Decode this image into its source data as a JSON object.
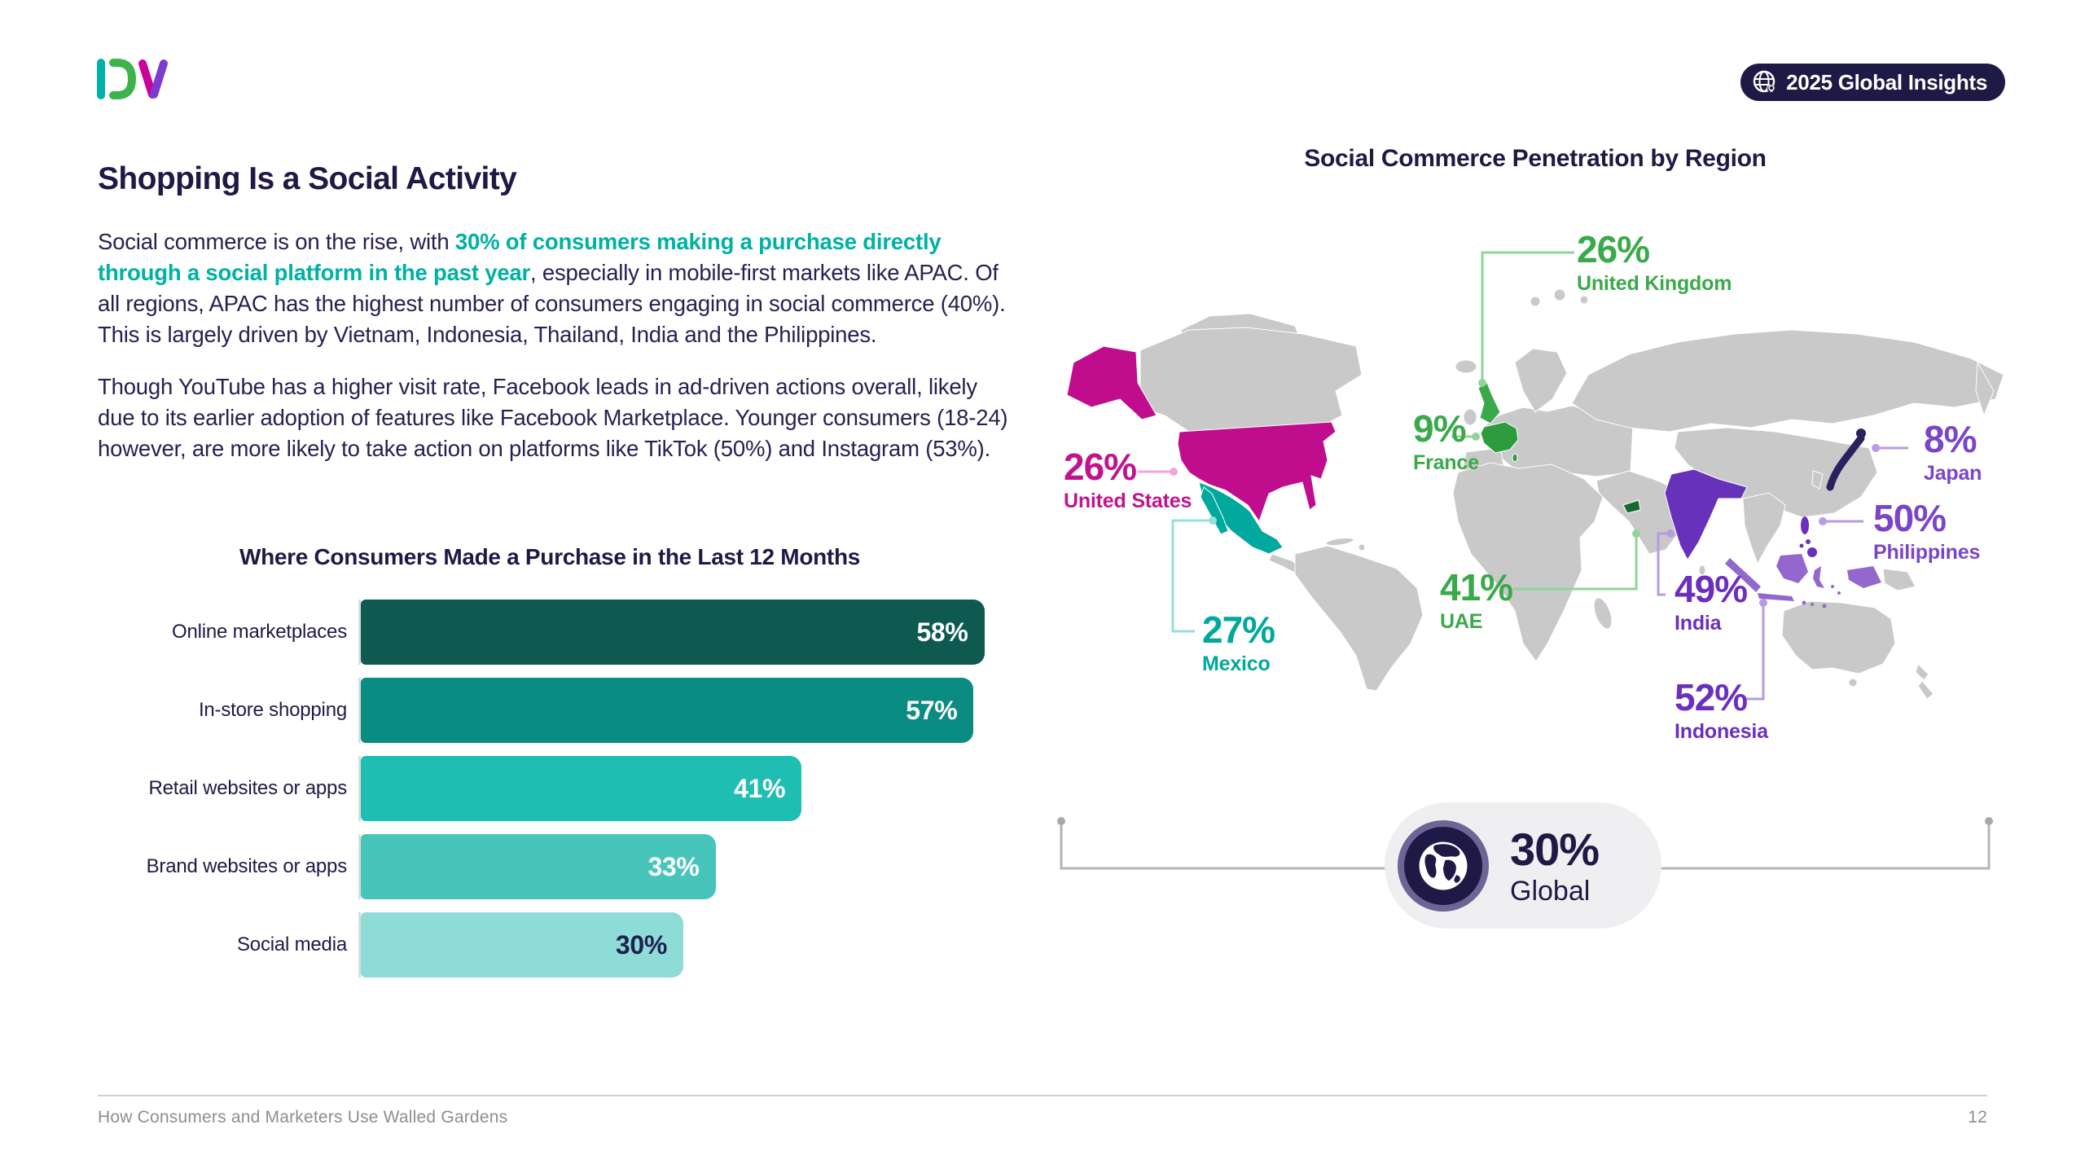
{
  "brand": {
    "logo_text": "DV"
  },
  "badge": {
    "icon": "globe-idea-icon",
    "label": "2025 Global Insights"
  },
  "left": {
    "heading": "Shopping Is a Social Activity",
    "para1_pre": "Social commerce is on the rise, with ",
    "para1_highlight": "30% of consumers making a purchase directly through a social platform in the past year",
    "para1_post": ", especially in mobile-first markets like APAC. Of all regions, APAC has the highest number of consumers engaging in social commerce (40%). This is largely driven by Vietnam, Indonesia, Thailand, India and the Philippines.",
    "para2": "Though YouTube has a higher visit rate, Facebook leads in ad-driven actions overall, likely due to its earlier adoption of features like Facebook Marketplace. Younger consumers (18-24) however, are more likely to take action on platforms like TikTok (50%) and Instagram (53%)."
  },
  "chart_data": {
    "type": "bar",
    "orientation": "horizontal",
    "title": "Where Consumers Made a Purchase in the Last 12 Months",
    "categories": [
      "Online marketplaces",
      "In-store shopping",
      "Retail websites or apps",
      "Brand websites or apps",
      "Social media"
    ],
    "values": [
      58,
      57,
      41,
      33,
      30
    ],
    "value_labels": [
      "58%",
      "57%",
      "41%",
      "33%",
      "30%"
    ],
    "bar_colors": [
      "#0e5a50",
      "#0b8c82",
      "#1fbeb2",
      "#47c5bb",
      "#8edcd6"
    ],
    "value_text_colors": [
      "#ffffff",
      "#ffffff",
      "#ffffff",
      "#ffffff",
      "#1e2150"
    ],
    "xlim": [
      0,
      60
    ],
    "grid": false
  },
  "map": {
    "title": "Social Commerce Penetration by Region",
    "callouts": [
      {
        "country": "United Kingdom",
        "value": "26%",
        "color": "#3aa94a"
      },
      {
        "country": "France",
        "value": "9%",
        "color": "#3aa94a"
      },
      {
        "country": "United States",
        "value": "26%",
        "color": "#c2138f"
      },
      {
        "country": "Mexico",
        "value": "27%",
        "color": "#00a89d"
      },
      {
        "country": "UAE",
        "value": "41%",
        "color": "#3aa94a"
      },
      {
        "country": "Japan",
        "value": "8%",
        "color": "#7a45c8"
      },
      {
        "country": "Philippines",
        "value": "50%",
        "color": "#7a45c8"
      },
      {
        "country": "India",
        "value": "49%",
        "color": "#6b2fbe"
      },
      {
        "country": "Indonesia",
        "value": "52%",
        "color": "#6b2fbe"
      }
    ],
    "global": {
      "icon": "globe-icon",
      "value": "30%",
      "label": "Global"
    }
  },
  "footer": {
    "left": "How Consumers and Marketers Use Walled Gardens",
    "page": "12"
  }
}
